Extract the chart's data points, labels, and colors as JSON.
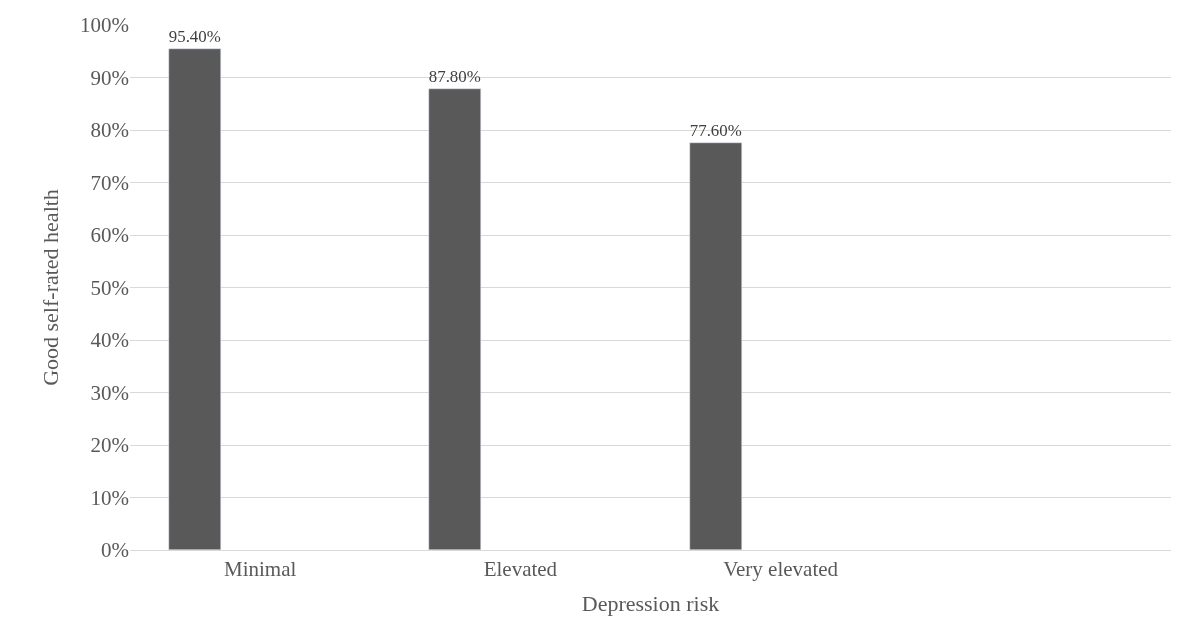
{
  "chart_data": {
    "type": "bar",
    "xlabel": "Depression risk",
    "ylabel": "Good self-rated health",
    "categories": [
      "Minimal",
      "Elevated",
      "Very elevated",
      null
    ],
    "series": [
      {
        "color": "#595959",
        "values": [
          95.4,
          87.8,
          77.6,
          null
        ],
        "value_labels": [
          "95.40%",
          "87.80%",
          "77.60%",
          null
        ]
      }
    ],
    "ylim": [
      0,
      100
    ],
    "yticks": [
      {
        "value": 0,
        "label": "0%"
      },
      {
        "value": 10,
        "label": "10%"
      },
      {
        "value": 20,
        "label": "20%"
      },
      {
        "value": 30,
        "label": "30%"
      },
      {
        "value": 40,
        "label": "40%"
      },
      {
        "value": 50,
        "label": "50%"
      },
      {
        "value": 60,
        "label": "60%"
      },
      {
        "value": 70,
        "label": "70%"
      },
      {
        "value": 80,
        "label": "80%"
      },
      {
        "value": 90,
        "label": "90%"
      },
      {
        "value": 100,
        "label": "100%"
      }
    ],
    "grid": "y"
  }
}
